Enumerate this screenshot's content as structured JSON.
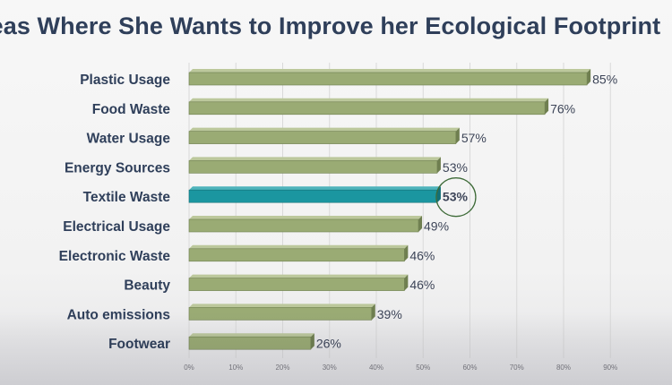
{
  "chart_data": {
    "type": "bar",
    "orientation": "horizontal",
    "title": "reas Where She Wants  to Improve her Ecological Footprint",
    "categories": [
      "Plastic Usage",
      "Food Waste",
      "Water Usage",
      "Energy Sources",
      "Textile Waste",
      "Electrical Usage",
      "Electronic Waste",
      "Beauty",
      "Auto emissions",
      "Footwear"
    ],
    "values": [
      85,
      76,
      57,
      53,
      53,
      49,
      46,
      46,
      39,
      26
    ],
    "value_labels": [
      "85%",
      "76%",
      "57%",
      "53%",
      "53%",
      "49%",
      "46%",
      "46%",
      "39%",
      "26%"
    ],
    "highlight": {
      "category": "Textile Waste",
      "label": "53%",
      "circled": true
    },
    "x_ticks": [
      0,
      10,
      20,
      30,
      40,
      50,
      60,
      70,
      80,
      90
    ],
    "x_tick_labels": [
      "0%",
      "10%",
      "20%",
      "30%",
      "40%",
      "50%",
      "60%",
      "70%",
      "80%",
      "90%"
    ],
    "xlim": [
      0,
      90
    ],
    "grid": true,
    "colors": {
      "bar": "#9aab74",
      "bar_highlight": "#1b96a0",
      "title": "#2f3f5a",
      "category_text": "#2f3f5a",
      "value_text": "#3d4558",
      "circle": "#3e6b38"
    }
  }
}
